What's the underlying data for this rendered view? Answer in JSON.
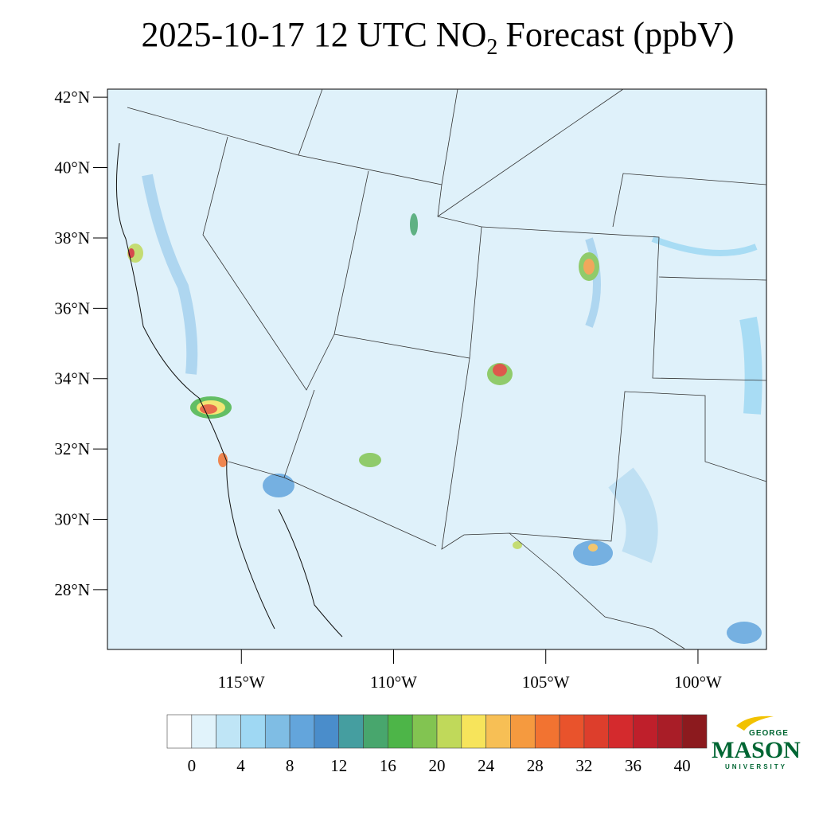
{
  "map_data": {
    "title": {
      "prefix": "2025-10-17 12 UTC NO",
      "subscript": "2",
      "suffix": "Forecast (ppbV)"
    },
    "xlim": [
      -119.4,
      -97.75
    ],
    "ylim": [
      26.3,
      42.23
    ],
    "xticks": [
      {
        "value": -115,
        "label": "115°W"
      },
      {
        "value": -110,
        "label": "110°W"
      },
      {
        "value": -105,
        "label": "105°W"
      },
      {
        "value": -100,
        "label": "100°W"
      }
    ],
    "yticks": [
      {
        "value": 42,
        "label": "42°N"
      },
      {
        "value": 40,
        "label": "40°N"
      },
      {
        "value": 38,
        "label": "38°N"
      },
      {
        "value": 36,
        "label": "36°N"
      },
      {
        "value": 34,
        "label": "34°N"
      },
      {
        "value": 32,
        "label": "32°N"
      },
      {
        "value": 30,
        "label": "30°N"
      },
      {
        "value": 28,
        "label": "28°N"
      }
    ],
    "colorbar": {
      "colors": [
        "#ffffff",
        "#e1f3fb",
        "#bfe5f6",
        "#9fd8f3",
        "#7fbde4",
        "#63a5dc",
        "#4a8dcb",
        "#459ea0",
        "#48a66d",
        "#4db548",
        "#82c451",
        "#c0d95a",
        "#f7e45b",
        "#f7bf55",
        "#f59a3f",
        "#f27331",
        "#e9532c",
        "#dd3e2c",
        "#d42a2d",
        "#bf1f2b",
        "#a91d27",
        "#8c1a1e"
      ],
      "ticks": [
        0,
        4,
        8,
        12,
        16,
        20,
        24,
        28,
        32,
        36,
        40
      ]
    },
    "logo": {
      "top": "GEORGE",
      "main": "MASON",
      "bottom": "UNIVERSITY"
    }
  }
}
